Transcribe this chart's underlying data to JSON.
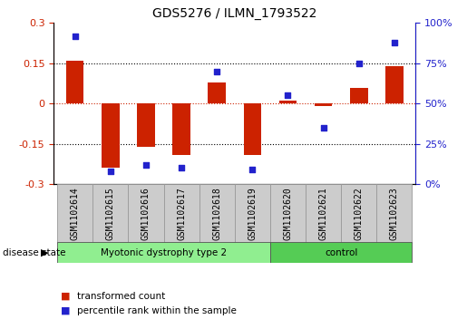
{
  "title": "GDS5276 / ILMN_1793522",
  "samples": [
    "GSM1102614",
    "GSM1102615",
    "GSM1102616",
    "GSM1102617",
    "GSM1102618",
    "GSM1102619",
    "GSM1102620",
    "GSM1102621",
    "GSM1102622",
    "GSM1102623"
  ],
  "bar_values": [
    0.16,
    -0.24,
    -0.16,
    -0.19,
    0.08,
    -0.19,
    0.01,
    -0.01,
    0.06,
    0.14
  ],
  "scatter_values": [
    92,
    8,
    12,
    10,
    70,
    9,
    55,
    35,
    75,
    88
  ],
  "ylim_left": [
    -0.3,
    0.3
  ],
  "ylim_right": [
    0,
    100
  ],
  "yticks_left": [
    -0.3,
    -0.15,
    0.0,
    0.15,
    0.3
  ],
  "yticks_right": [
    0,
    25,
    50,
    75,
    100
  ],
  "ytick_labels_left": [
    "-0.3",
    "-0.15",
    "0",
    "0.15",
    "0.3"
  ],
  "ytick_labels_right": [
    "0%",
    "25%",
    "50%",
    "75%",
    "100%"
  ],
  "bar_color": "#cc2200",
  "scatter_color": "#2222cc",
  "zero_line_color": "#cc2200",
  "disease_groups": [
    {
      "label": "Myotonic dystrophy type 2",
      "start": 0,
      "end": 6,
      "color": "#90ee90"
    },
    {
      "label": "control",
      "start": 6,
      "end": 10,
      "color": "#55cc55"
    }
  ],
  "disease_state_label": "disease state",
  "legend_items": [
    {
      "label": "transformed count",
      "color": "#cc2200"
    },
    {
      "label": "percentile rank within the sample",
      "color": "#2222cc"
    }
  ],
  "sample_box_color": "#cccccc",
  "sample_box_edge_color": "#999999",
  "tick_label_fontsize": 7,
  "title_fontsize": 10,
  "axis_fontsize": 8
}
